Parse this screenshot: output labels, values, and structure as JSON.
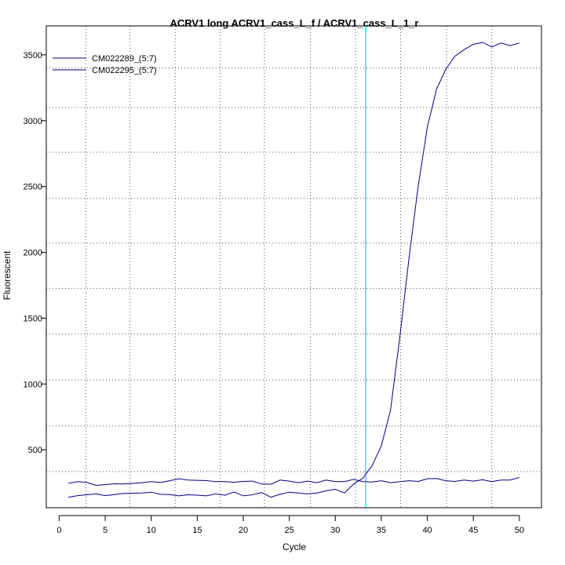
{
  "chart_data": {
    "type": "line",
    "title": "ACRV1 long ACRV1_cass_L_f / ACRV1_cass_L_1_r",
    "xlabel": "Cycle",
    "ylabel": "Fluorescent",
    "xlim": [
      -1.4,
      52.4
    ],
    "ylim": [
      60,
      3720
    ],
    "x_ticks": [
      0,
      5,
      10,
      15,
      20,
      25,
      30,
      35,
      40,
      45,
      50
    ],
    "y_ticks": [
      500,
      1000,
      1500,
      2000,
      2500,
      3000,
      3500
    ],
    "grid_x": [
      2.9,
      7.7,
      12.6,
      17.5,
      22.3,
      27.3,
      32.2,
      37.1,
      42.1,
      47.0
    ],
    "grid_y": [
      335,
      680,
      1030,
      1380,
      1725,
      2070,
      2410,
      2760,
      3100,
      3400
    ],
    "threshold_cycle": 33.3,
    "threshold_color": "#00ffff",
    "grid": true,
    "legend_position": "top-left",
    "series": [
      {
        "name": "CM022289_(5:7)",
        "color": "#000080",
        "x": [
          1,
          2,
          3,
          4,
          5,
          6,
          7,
          8,
          9,
          10,
          11,
          12,
          13,
          14,
          15,
          16,
          17,
          18,
          19,
          20,
          21,
          22,
          23,
          24,
          25,
          26,
          27,
          28,
          29,
          30,
          31,
          32,
          33,
          34,
          35,
          36,
          37,
          38,
          39,
          40,
          41,
          42,
          43,
          44,
          45,
          46,
          47,
          48,
          49,
          50
        ],
        "values": [
          245,
          258,
          252,
          230,
          235,
          242,
          240,
          245,
          250,
          258,
          252,
          265,
          280,
          270,
          268,
          266,
          258,
          258,
          254,
          260,
          262,
          240,
          238,
          270,
          262,
          250,
          262,
          250,
          270,
          258,
          258,
          275,
          258,
          255,
          265,
          250,
          258,
          265,
          260,
          280,
          282,
          265,
          260,
          270,
          262,
          272,
          258,
          270,
          270,
          290
        ]
      },
      {
        "name": "CM022295_(5:7)",
        "color": "#000080",
        "x": [
          1,
          2,
          3,
          4,
          5,
          6,
          7,
          8,
          9,
          10,
          11,
          12,
          13,
          14,
          15,
          16,
          17,
          18,
          19,
          20,
          21,
          22,
          23,
          24,
          25,
          26,
          27,
          28,
          29,
          30,
          31,
          32,
          33,
          34,
          35,
          36,
          37,
          38,
          39,
          40,
          41,
          42,
          43,
          44,
          45,
          46,
          47,
          48,
          49,
          50
        ],
        "values": [
          140,
          152,
          158,
          165,
          152,
          160,
          168,
          170,
          172,
          178,
          162,
          160,
          150,
          158,
          155,
          150,
          165,
          155,
          180,
          150,
          158,
          175,
          140,
          162,
          178,
          172,
          165,
          172,
          188,
          200,
          172,
          240,
          285,
          380,
          530,
          800,
          1350,
          1950,
          2500,
          2950,
          3240,
          3390,
          3490,
          3540,
          3580,
          3595,
          3560,
          3590,
          3570,
          3590
        ]
      }
    ]
  }
}
